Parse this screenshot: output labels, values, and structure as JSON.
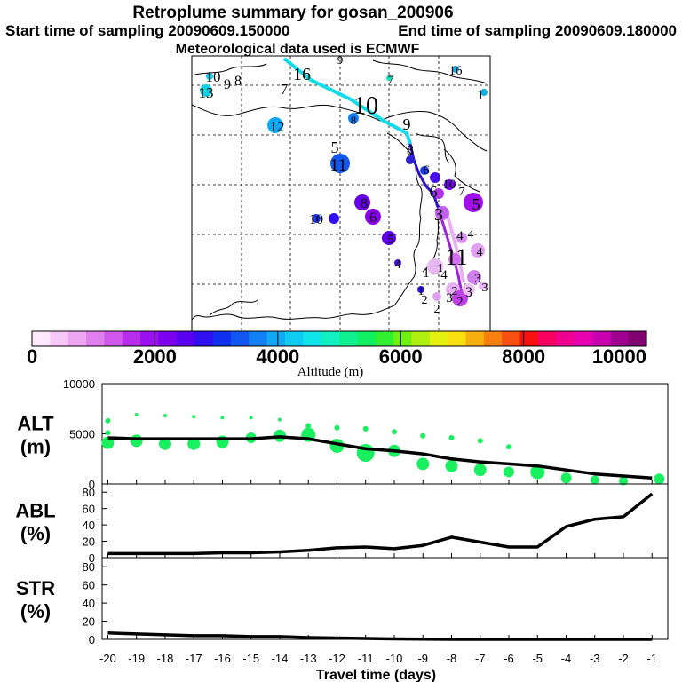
{
  "header": {
    "title": "Retroplume summary for gosan_200906",
    "start": "Start time of sampling 20090609.150000",
    "end": "End time of sampling 20090609.180000",
    "met": "Meteorological data used is ECMWF"
  },
  "colorbar": {
    "ticks": [
      "0",
      "2000",
      "4000",
      "6000",
      "8000",
      "10000"
    ],
    "label": "Altitude (m)",
    "colors": [
      "#fde8fd",
      "#f6c8f8",
      "#eca6f2",
      "#e080ee",
      "#d058ec",
      "#b82cee",
      "#9a10ee",
      "#7c00ee",
      "#5a00f0",
      "#3010f0",
      "#1030f0",
      "#1058f0",
      "#1080f4",
      "#10a8f4",
      "#10ccf4",
      "#10e4e8",
      "#10f0c0",
      "#10f090",
      "#10f060",
      "#30f030",
      "#70f010",
      "#b0f010",
      "#e4f010",
      "#f8e010",
      "#f8b010",
      "#f88010",
      "#f85010",
      "#f81010",
      "#f80060",
      "#f00090",
      "#e800b0",
      "#c800b0",
      "#a00090",
      "#800070"
    ]
  },
  "map": {
    "labels": [
      "16",
      "10",
      "9",
      "8",
      "13",
      "7",
      "9",
      "7",
      "16",
      "1",
      "10",
      "8",
      "9",
      "12",
      "5",
      "11",
      "8",
      "6",
      "6",
      "10",
      "7",
      "5",
      "8",
      "6",
      "3",
      "10",
      "5",
      "4",
      "4",
      "11",
      "4",
      "4",
      "3",
      "3",
      "2",
      "3",
      "2",
      "2",
      "1",
      "2",
      "3",
      "4",
      "1",
      "1"
    ]
  },
  "chart_data": [
    {
      "type": "line",
      "panel": "ALT",
      "ylabel": "ALT\n(m)",
      "ylabel_lines": [
        "ALT",
        "(m)"
      ],
      "ylim": [
        0,
        10000
      ],
      "yticks": [
        0,
        5000,
        10000
      ],
      "x": [
        -20,
        -19,
        -18,
        -17,
        -16,
        -15,
        -14,
        -13,
        -12,
        -11,
        -10,
        -9,
        -8,
        -7,
        -6,
        -5,
        -4,
        -3,
        -2,
        -1
      ],
      "series": [
        {
          "name": "mean altitude",
          "values": [
            4600,
            4500,
            4500,
            4500,
            4500,
            4500,
            4700,
            4500,
            4000,
            3500,
            3300,
            3000,
            2500,
            2200,
            2000,
            1800,
            1400,
            1000,
            800,
            600
          ]
        }
      ],
      "clusters": {
        "x": [
          -20,
          -20,
          -20,
          -19,
          -19,
          -18,
          -18,
          -17,
          -17,
          -16,
          -16,
          -15,
          -15,
          -14,
          -14,
          -13,
          -13,
          -12,
          -12,
          -11,
          -11,
          -10,
          -10,
          -9,
          -9,
          -8,
          -8,
          -7,
          -7,
          -6,
          -6,
          -5,
          -4,
          -3,
          -2,
          -0.75
        ],
        "alt": [
          6300,
          5100,
          4100,
          6900,
          4300,
          6800,
          4000,
          6700,
          4000,
          6600,
          4200,
          6600,
          4600,
          6400,
          4800,
          5800,
          4900,
          5600,
          3800,
          5500,
          3100,
          5200,
          3300,
          4800,
          2000,
          4600,
          1800,
          4300,
          1400,
          3700,
          1200,
          1200,
          600,
          400,
          300,
          500
        ],
        "size": [
          3,
          3,
          7,
          2,
          7,
          2,
          7,
          2,
          7,
          2,
          7,
          2,
          6,
          2,
          7,
          3,
          8,
          3,
          8,
          3,
          10,
          3,
          7,
          3,
          7,
          3,
          7,
          3,
          7,
          3,
          6,
          8,
          6,
          5,
          5,
          6
        ]
      }
    },
    {
      "type": "line",
      "panel": "ABL",
      "ylabel": "ABL\n(%)",
      "ylabel_lines": [
        "ABL",
        "(%)"
      ],
      "ylim": [
        0,
        90
      ],
      "yticks": [
        0,
        20,
        40,
        60,
        80
      ],
      "x": [
        -20,
        -19,
        -18,
        -17,
        -16,
        -15,
        -14,
        -13,
        -12,
        -11,
        -10,
        -9,
        -8,
        -7,
        -6,
        -5,
        -4,
        -3,
        -2,
        -1
      ],
      "series": [
        {
          "name": "fraction in boundary layer",
          "values": [
            5,
            5,
            5,
            5,
            6,
            6,
            7,
            9,
            12,
            13,
            11,
            15,
            25,
            19,
            13,
            13,
            38,
            47,
            50,
            78
          ]
        }
      ]
    },
    {
      "type": "line",
      "panel": "STR",
      "ylabel": "STR\n(%)",
      "ylabel_lines": [
        "STR",
        "(%)"
      ],
      "ylim": [
        0,
        90
      ],
      "yticks": [
        0,
        20,
        40,
        60,
        80
      ],
      "x": [
        -20,
        -19,
        -18,
        -17,
        -16,
        -15,
        -14,
        -13,
        -12,
        -11,
        -10,
        -9,
        -8,
        -7,
        -6,
        -5,
        -4,
        -3,
        -2,
        -1
      ],
      "series": [
        {
          "name": "fraction in stratosphere",
          "values": [
            7,
            6,
            5,
            4,
            4,
            3,
            3,
            2,
            1.5,
            1,
            0.5,
            0.3,
            0,
            0,
            0,
            0,
            0,
            0,
            0,
            0
          ]
        }
      ],
      "xlabel": "Travel time (days)",
      "xticks": [
        -20,
        -19,
        -18,
        -17,
        -16,
        -15,
        -14,
        -13,
        -12,
        -11,
        -10,
        -9,
        -8,
        -7,
        -6,
        -5,
        -4,
        -3,
        -2,
        -1
      ],
      "xticklabels": [
        "-20",
        "-19",
        "-18",
        "-17",
        "-16",
        "-15",
        "-14",
        "-13",
        "-12",
        "-11",
        "-10",
        "-9",
        "-8",
        "-7",
        "-6",
        "-5",
        "-4",
        "-3",
        "-2",
        "-1"
      ]
    }
  ]
}
